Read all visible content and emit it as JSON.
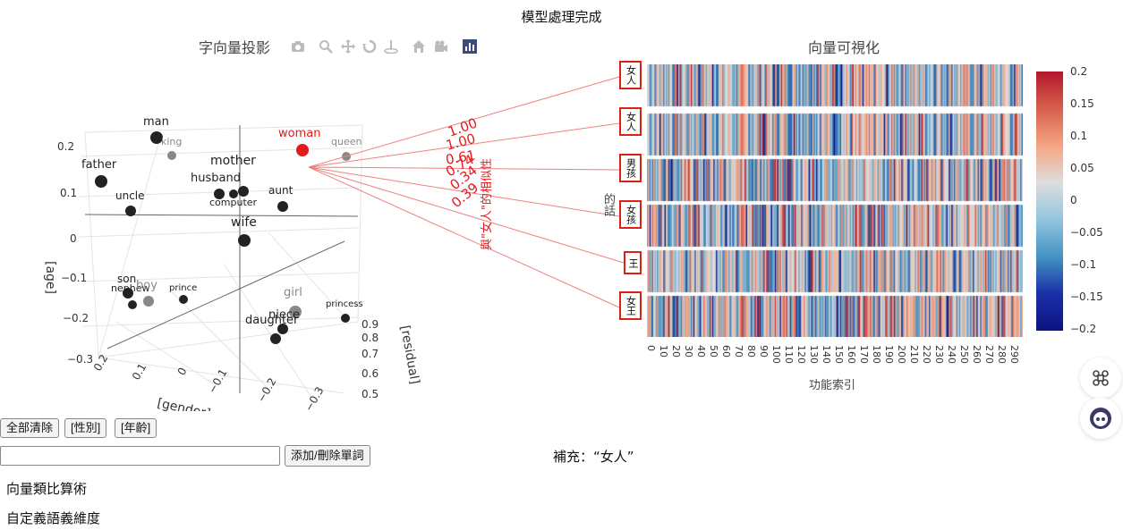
{
  "status": "模型處理完成",
  "plot3d": {
    "title": "字向量投影",
    "modebar": [
      "camera-icon",
      "zoom-icon",
      "pan-icon",
      "orbit-icon",
      "turntable-icon",
      "home-icon",
      "video-camera-icon",
      "plotly-logo-icon"
    ],
    "axis_titles": {
      "age": "[age]",
      "gender": "[gender]",
      "residual": "[residual]"
    },
    "age_ticks": [
      "0.2",
      "0.1",
      "0",
      "−0.1",
      "−0.2",
      "−0.3"
    ],
    "gender_ticks": [
      "0.2",
      "0.1",
      "0",
      "−0.1",
      "−0.2",
      "−0.3"
    ],
    "residual_ticks": [
      "0.9",
      "0.8",
      "0.7",
      "0.6",
      "0.5"
    ],
    "words": [
      {
        "label": "man",
        "color": "#222"
      },
      {
        "label": "king",
        "color": "#888"
      },
      {
        "label": "woman",
        "color": "#e31a1c"
      },
      {
        "label": "queen",
        "color": "#888"
      },
      {
        "label": "father",
        "color": "#222"
      },
      {
        "label": "mother",
        "color": "#222"
      },
      {
        "label": "husband",
        "color": "#222"
      },
      {
        "label": "uncle",
        "color": "#222"
      },
      {
        "label": "aunt",
        "color": "#222"
      },
      {
        "label": "computer",
        "color": "#222"
      },
      {
        "label": "wife",
        "color": "#222"
      },
      {
        "label": "son",
        "color": "#222"
      },
      {
        "label": "nephew",
        "color": "#222"
      },
      {
        "label": "boy",
        "color": "#888"
      },
      {
        "label": "prince",
        "color": "#222"
      },
      {
        "label": "girl",
        "color": "#888"
      },
      {
        "label": "niece",
        "color": "#222"
      },
      {
        "label": "daughter",
        "color": "#222"
      },
      {
        "label": "princess",
        "color": "#222"
      }
    ],
    "similarity": {
      "label": "與\"女人\"的相似性",
      "values": [
        "1.00",
        "1.00",
        "0.61",
        "0.74",
        "0.34",
        "0.39"
      ]
    }
  },
  "heatmap": {
    "title": "向量可視化",
    "ylabel": "的話",
    "xlabel": "功能索引",
    "rows": [
      "女人",
      "女人",
      "男孩",
      "女孩",
      "王",
      "女王"
    ],
    "xticks": [
      "0",
      "10",
      "20",
      "30",
      "40",
      "50",
      "60",
      "70",
      "80",
      "90",
      "100",
      "110",
      "120",
      "130",
      "140",
      "150",
      "160",
      "170",
      "180",
      "190",
      "200",
      "210",
      "220",
      "230",
      "240",
      "250",
      "260",
      "270",
      "280",
      "290"
    ],
    "colorbar_ticks": [
      "0.2",
      "0.15",
      "0.1",
      "0.05",
      "0",
      "−0.05",
      "−0.1",
      "−0.15",
      "−0.2"
    ],
    "colors": {
      "max": "#b2182b",
      "mid": "#dddddd",
      "min": "#0c1380"
    }
  },
  "controls": {
    "clear_all": "全部清除",
    "gender": "[性別]",
    "age": "[年齡]",
    "input_value": "",
    "add_remove": "添加/刪除單詞",
    "supplement": "補充：“女人”"
  },
  "sections": [
    "向量類比算術",
    "自定義語義維度"
  ]
}
